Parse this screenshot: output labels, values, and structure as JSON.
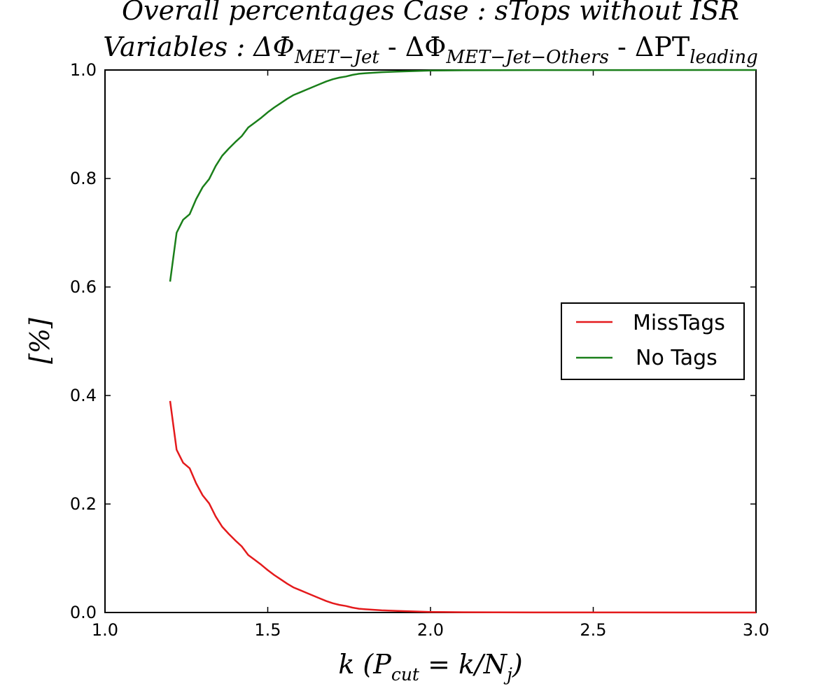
{
  "chart_data": {
    "type": "line",
    "title": {
      "line1": "Overall percentages Case : sTops without ISR",
      "line2": {
        "prefix": "Variables : ΔΦ",
        "sub1": "MET−Jet",
        "mid1": " - ΔΦ",
        "sub2": "MET−Jet−Others",
        "mid2": " - ΔPT",
        "sub3": "leading"
      }
    },
    "xlabel": {
      "main": "k (P",
      "sub1": "cut",
      "mid": " = k/N",
      "sub2": "j",
      "end": ")"
    },
    "ylabel": "[%]",
    "xlim": [
      1.0,
      3.0
    ],
    "ylim": [
      0.0,
      1.0
    ],
    "xticks": [
      "1.0",
      "1.5",
      "2.0",
      "2.5",
      "3.0"
    ],
    "yticks": [
      "0.0",
      "0.2",
      "0.4",
      "0.6",
      "0.8",
      "1.0"
    ],
    "legend_position": "right",
    "series": [
      {
        "name": "MissTags",
        "color": "#e41a1c",
        "x": [
          1.2,
          1.22,
          1.24,
          1.26,
          1.28,
          1.3,
          1.32,
          1.34,
          1.36,
          1.38,
          1.4,
          1.42,
          1.44,
          1.46,
          1.48,
          1.5,
          1.52,
          1.54,
          1.56,
          1.58,
          1.6,
          1.62,
          1.64,
          1.66,
          1.68,
          1.7,
          1.72,
          1.74,
          1.76,
          1.78,
          1.8,
          1.85,
          1.9,
          1.95,
          2.0,
          2.1,
          2.2,
          2.5,
          3.0
        ],
        "values": [
          0.39,
          0.3,
          0.276,
          0.266,
          0.238,
          0.216,
          0.201,
          0.177,
          0.158,
          0.145,
          0.133,
          0.122,
          0.106,
          0.097,
          0.088,
          0.078,
          0.069,
          0.061,
          0.053,
          0.046,
          0.041,
          0.036,
          0.031,
          0.026,
          0.021,
          0.017,
          0.014,
          0.012,
          0.009,
          0.007,
          0.006,
          0.004,
          0.003,
          0.002,
          0.001,
          0.0005,
          0.0003,
          0.0001,
          0.0
        ]
      },
      {
        "name": "No Tags",
        "color": "#1a7f1a",
        "x": [
          1.2,
          1.22,
          1.24,
          1.26,
          1.28,
          1.3,
          1.32,
          1.34,
          1.36,
          1.38,
          1.4,
          1.42,
          1.44,
          1.46,
          1.48,
          1.5,
          1.52,
          1.54,
          1.56,
          1.58,
          1.6,
          1.62,
          1.64,
          1.66,
          1.68,
          1.7,
          1.72,
          1.74,
          1.76,
          1.78,
          1.8,
          1.85,
          1.9,
          1.95,
          2.0,
          2.1,
          2.2,
          2.5,
          3.0
        ],
        "values": [
          0.61,
          0.7,
          0.724,
          0.734,
          0.762,
          0.784,
          0.799,
          0.823,
          0.842,
          0.855,
          0.867,
          0.878,
          0.894,
          0.903,
          0.912,
          0.922,
          0.931,
          0.939,
          0.947,
          0.954,
          0.959,
          0.964,
          0.969,
          0.974,
          0.979,
          0.983,
          0.986,
          0.988,
          0.991,
          0.993,
          0.994,
          0.996,
          0.997,
          0.998,
          0.999,
          0.9995,
          0.9997,
          0.9999,
          1.0
        ]
      }
    ]
  }
}
